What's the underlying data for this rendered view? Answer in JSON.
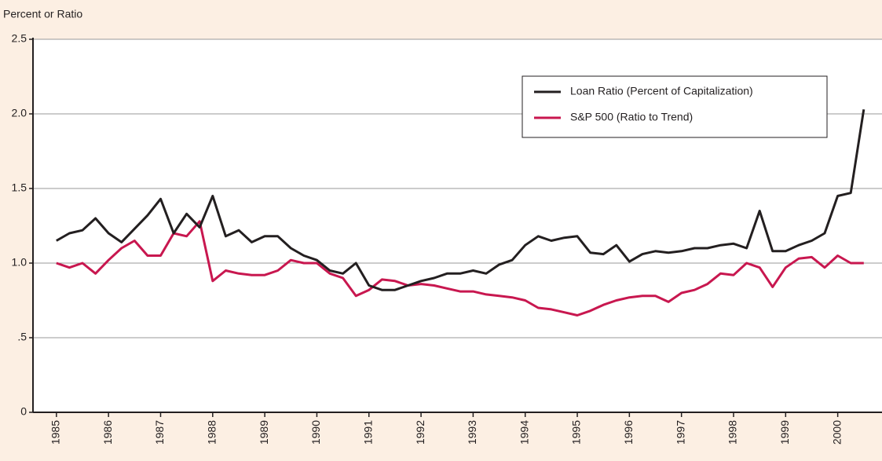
{
  "chart_data": {
    "type": "line",
    "y_label": "Percent or Ratio",
    "x": [
      1985,
      1985.25,
      1985.5,
      1985.75,
      1986,
      1986.25,
      1986.5,
      1986.75,
      1987,
      1987.25,
      1987.5,
      1987.75,
      1988,
      1988.25,
      1988.5,
      1988.75,
      1989,
      1989.25,
      1989.5,
      1989.75,
      1990,
      1990.25,
      1990.5,
      1990.75,
      1991,
      1991.25,
      1991.5,
      1991.75,
      1992,
      1992.25,
      1992.5,
      1992.75,
      1993,
      1993.25,
      1993.5,
      1993.75,
      1994,
      1994.25,
      1994.5,
      1994.75,
      1995,
      1995.25,
      1995.5,
      1995.75,
      1996,
      1996.25,
      1996.5,
      1996.75,
      1997,
      1997.25,
      1997.5,
      1997.75,
      1998,
      1998.25,
      1998.5,
      1998.75,
      1999,
      1999.25,
      1999.5,
      1999.75,
      2000,
      2000.25,
      2000.5
    ],
    "series": [
      {
        "name": "Loan Ratio (Percent of Capitalization)",
        "color": "#231f20",
        "values": [
          1.15,
          1.2,
          1.22,
          1.3,
          1.2,
          1.14,
          1.23,
          1.32,
          1.43,
          1.2,
          1.33,
          1.24,
          1.45,
          1.18,
          1.22,
          1.14,
          1.18,
          1.18,
          1.1,
          1.05,
          1.02,
          0.95,
          0.93,
          1.0,
          0.85,
          0.82,
          0.82,
          0.85,
          0.88,
          0.9,
          0.93,
          0.93,
          0.95,
          0.93,
          0.99,
          1.02,
          1.12,
          1.18,
          1.15,
          1.17,
          1.18,
          1.07,
          1.06,
          1.12,
          1.01,
          1.06,
          1.08,
          1.07,
          1.08,
          1.1,
          1.1,
          1.12,
          1.13,
          1.1,
          1.35,
          1.08,
          1.08,
          1.12,
          1.15,
          1.2,
          1.45,
          1.47,
          2.03
        ]
      },
      {
        "name": "S&P 500 (Ratio to Trend)",
        "color": "#c8174f",
        "values": [
          1.0,
          0.97,
          1.0,
          0.93,
          1.02,
          1.1,
          1.15,
          1.05,
          1.05,
          1.2,
          1.18,
          1.28,
          0.88,
          0.95,
          0.93,
          0.92,
          0.92,
          0.95,
          1.02,
          1.0,
          1.0,
          0.93,
          0.9,
          0.78,
          0.82,
          0.89,
          0.88,
          0.85,
          0.86,
          0.85,
          0.83,
          0.81,
          0.81,
          0.79,
          0.78,
          0.77,
          0.75,
          0.7,
          0.69,
          0.67,
          0.65,
          0.68,
          0.72,
          0.75,
          0.77,
          0.78,
          0.78,
          0.74,
          0.8,
          0.82,
          0.86,
          0.93,
          0.92,
          1.0,
          0.97,
          0.84,
          0.97,
          1.03,
          1.04,
          0.97,
          1.05,
          1.0,
          1.0
        ]
      }
    ],
    "xlim": [
      1984.55,
      2000.85
    ],
    "xticks": [
      1985,
      1986,
      1987,
      1988,
      1989,
      1990,
      1991,
      1992,
      1993,
      1994,
      1995,
      1996,
      1997,
      1998,
      1999,
      2000
    ],
    "ylim": [
      0,
      2.5
    ],
    "yticks": [
      0,
      {
        "value": 0.5,
        "label": ".5"
      },
      {
        "value": 1,
        "label": "1.0"
      },
      1.5,
      {
        "value": 2,
        "label": "2.0"
      },
      2.5
    ],
    "grid": true
  }
}
